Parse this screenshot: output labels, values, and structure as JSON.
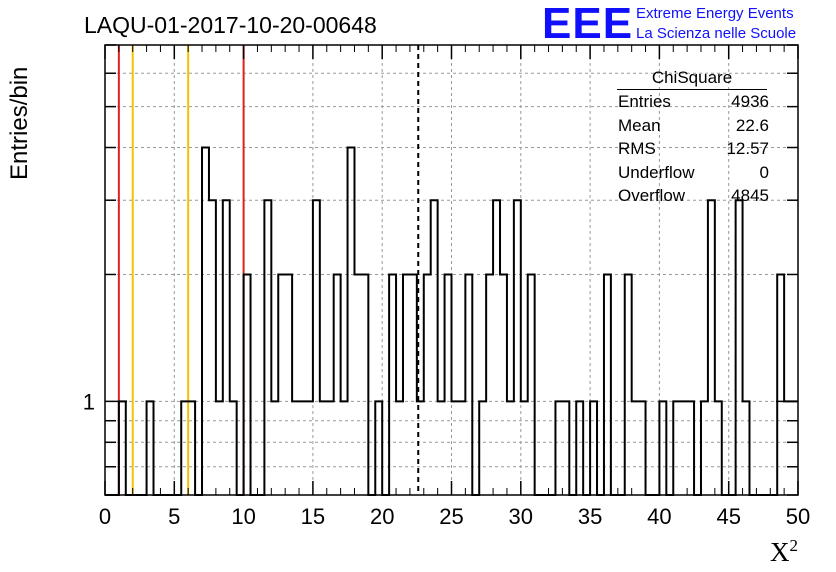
{
  "header": {
    "title": "LAQU-01-2017-10-20-00648"
  },
  "brand": {
    "logo_text": "EEE",
    "line1": "Extreme Energy Events",
    "line2": "La Scienza nelle Scuole",
    "color": "#1010ff"
  },
  "stats_box": {
    "title": "ChiSquare",
    "rows": [
      {
        "label": "Entries",
        "value": "4936"
      },
      {
        "label": "Mean",
        "value": "22.6"
      },
      {
        "label": "RMS",
        "value": "12.57"
      },
      {
        "label": "Underflow",
        "value": "0"
      },
      {
        "label": "Overflow",
        "value": "4845"
      }
    ]
  },
  "chart_data": {
    "type": "histogram",
    "title": "LAQU-01-2017-10-20-00648",
    "xlabel": "X²",
    "ylabel": "Entries/bin",
    "xlim": [
      0,
      50
    ],
    "ylim": [
      0.6,
      7
    ],
    "log_y": true,
    "grid": true,
    "bin_width": 0.5,
    "x_ticks": [
      "0",
      "5",
      "10",
      "15",
      "20",
      "25",
      "30",
      "35",
      "40",
      "45",
      "50"
    ],
    "y_tick_labels": [
      "1"
    ],
    "bins": [
      {
        "x": 1.0,
        "count": 1
      },
      {
        "x": 3.0,
        "count": 1
      },
      {
        "x": 5.5,
        "count": 1
      },
      {
        "x": 6.0,
        "count": 1
      },
      {
        "x": 7.0,
        "count": 4
      },
      {
        "x": 7.5,
        "count": 3
      },
      {
        "x": 8.0,
        "count": 1
      },
      {
        "x": 8.5,
        "count": 3
      },
      {
        "x": 9.0,
        "count": 1
      },
      {
        "x": 10.0,
        "count": 2
      },
      {
        "x": 11.5,
        "count": 3
      },
      {
        "x": 12.0,
        "count": 1
      },
      {
        "x": 12.5,
        "count": 2
      },
      {
        "x": 13.0,
        "count": 2
      },
      {
        "x": 13.5,
        "count": 1
      },
      {
        "x": 14.0,
        "count": 1
      },
      {
        "x": 14.5,
        "count": 1
      },
      {
        "x": 15.0,
        "count": 3
      },
      {
        "x": 15.5,
        "count": 1
      },
      {
        "x": 16.0,
        "count": 1
      },
      {
        "x": 16.5,
        "count": 2
      },
      {
        "x": 17.0,
        "count": 1
      },
      {
        "x": 17.5,
        "count": 4
      },
      {
        "x": 18.0,
        "count": 2
      },
      {
        "x": 18.5,
        "count": 2
      },
      {
        "x": 19.5,
        "count": 1
      },
      {
        "x": 20.5,
        "count": 2
      },
      {
        "x": 21.0,
        "count": 1
      },
      {
        "x": 21.5,
        "count": 2
      },
      {
        "x": 22.0,
        "count": 2
      },
      {
        "x": 22.5,
        "count": 1
      },
      {
        "x": 23.0,
        "count": 2
      },
      {
        "x": 23.5,
        "count": 3
      },
      {
        "x": 24.0,
        "count": 1
      },
      {
        "x": 24.5,
        "count": 2
      },
      {
        "x": 25.0,
        "count": 1
      },
      {
        "x": 25.5,
        "count": 1
      },
      {
        "x": 26.0,
        "count": 2
      },
      {
        "x": 27.0,
        "count": 1
      },
      {
        "x": 27.5,
        "count": 2
      },
      {
        "x": 28.0,
        "count": 3
      },
      {
        "x": 28.5,
        "count": 2
      },
      {
        "x": 29.0,
        "count": 1
      },
      {
        "x": 29.5,
        "count": 3
      },
      {
        "x": 30.0,
        "count": 1
      },
      {
        "x": 30.5,
        "count": 2
      },
      {
        "x": 32.5,
        "count": 1
      },
      {
        "x": 33.0,
        "count": 1
      },
      {
        "x": 34.0,
        "count": 1
      },
      {
        "x": 35.0,
        "count": 1
      },
      {
        "x": 36.0,
        "count": 2
      },
      {
        "x": 37.5,
        "count": 2
      },
      {
        "x": 38.0,
        "count": 1
      },
      {
        "x": 38.5,
        "count": 1
      },
      {
        "x": 40.0,
        "count": 1
      },
      {
        "x": 41.0,
        "count": 1
      },
      {
        "x": 41.5,
        "count": 1
      },
      {
        "x": 42.0,
        "count": 1
      },
      {
        "x": 43.0,
        "count": 1
      },
      {
        "x": 43.5,
        "count": 3
      },
      {
        "x": 44.0,
        "count": 1
      },
      {
        "x": 45.5,
        "count": 3
      },
      {
        "x": 46.0,
        "count": 1
      },
      {
        "x": 48.5,
        "count": 2
      },
      {
        "x": 49.0,
        "count": 1
      },
      {
        "x": 49.5,
        "count": 1
      }
    ],
    "vertical_lines": [
      {
        "x": 1.0,
        "color": "#dd2222",
        "style": "solid"
      },
      {
        "x": 2.0,
        "color": "#f2c200",
        "style": "solid"
      },
      {
        "x": 6.0,
        "color": "#f2c200",
        "style": "solid"
      },
      {
        "x": 10.0,
        "color": "#dd2222",
        "style": "solid"
      },
      {
        "x": 22.6,
        "color": "#000000",
        "style": "dashed"
      }
    ]
  }
}
